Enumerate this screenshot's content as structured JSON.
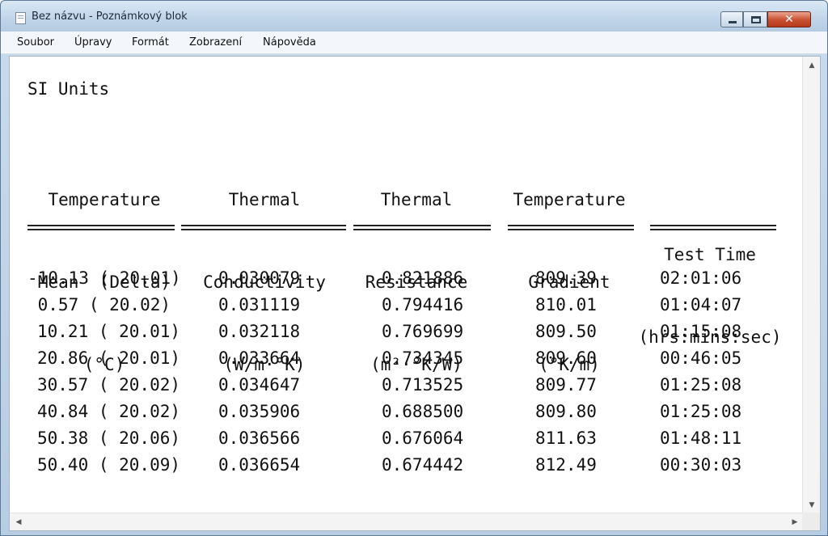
{
  "window": {
    "title": "Bez názvu - Poznámkový blok"
  },
  "menubar": {
    "items": [
      "Soubor",
      "Úpravy",
      "Formát",
      "Zobrazení",
      "Nápověda"
    ]
  },
  "document": {
    "heading": "SI Units",
    "columns": [
      {
        "line1": "Temperature",
        "line2": "Mean  (Delta)",
        "line3": "(°C)"
      },
      {
        "line1": "Thermal",
        "line2": "Conductivity",
        "line3": "(W/m·°K)"
      },
      {
        "line1": "Thermal",
        "line2": "Resistance",
        "line3": "(m²·°K/W)"
      },
      {
        "line1": "Temperature",
        "line2": "Gradient",
        "line3": "(°K/m)"
      },
      {
        "line1": "",
        "line2": "Test Time",
        "line3": "(hrs:mins:sec)"
      }
    ],
    "rows": [
      [
        "-10.13 ( 20.01)",
        "0.030079",
        "0.821886",
        "809.39",
        "02:01:06"
      ],
      [
        " 0.57 ( 20.02)",
        "0.031119",
        "0.794416",
        "810.01",
        "01:04:07"
      ],
      [
        "10.21 ( 20.01)",
        "0.032118",
        "0.769699",
        "809.50",
        "01:15:08"
      ],
      [
        "20.86 ( 20.01)",
        "0.033664",
        "0.734345",
        "809.60",
        "00:46:05"
      ],
      [
        "30.57 ( 20.02)",
        "0.034647",
        "0.713525",
        "809.77",
        "01:25:08"
      ],
      [
        "40.84 ( 20.02)",
        "0.035906",
        "0.688500",
        "809.80",
        "01:25:08"
      ],
      [
        "50.38 ( 20.06)",
        "0.036566",
        "0.676064",
        "811.63",
        "01:48:11"
      ],
      [
        "50.40 ( 20.09)",
        "0.036654",
        "0.674442",
        "812.49",
        "00:30:03"
      ]
    ]
  },
  "icons": {
    "app": "notepad-icon",
    "minimize": "minimize-icon",
    "maximize": "maximize-icon",
    "close": "close-icon"
  },
  "colors": {
    "titlebar": "#c2d6ea",
    "close_button": "#c84f30",
    "text": "#111111"
  }
}
